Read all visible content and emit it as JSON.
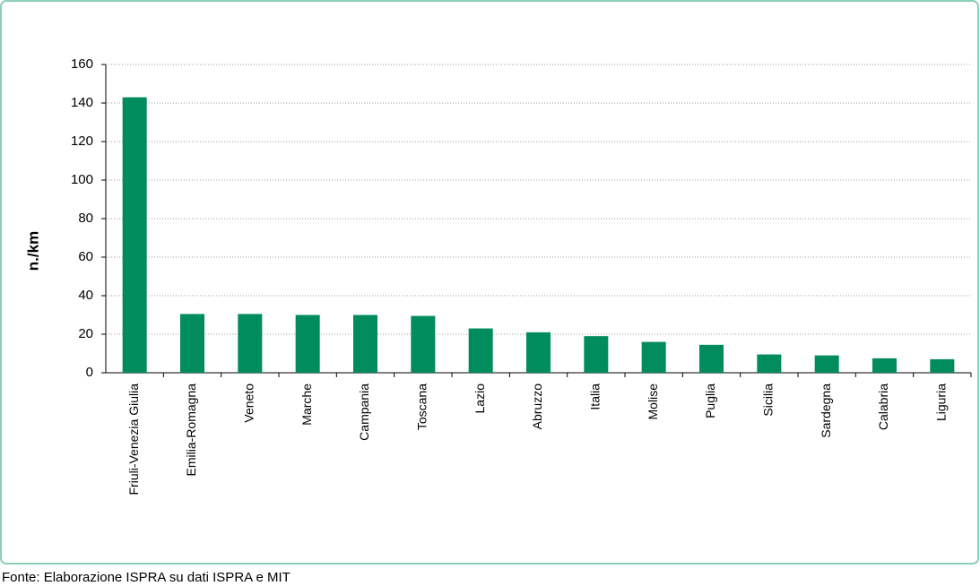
{
  "chart_data": {
    "type": "bar",
    "y_label": "n./km",
    "source": "Fonte: Elaborazione ISPRA su dati ISPRA e MIT",
    "categories": [
      "Friuli-Venezia Giulia",
      "Emilia-Romagna",
      "Veneto",
      "Marche",
      "Campania",
      "Toscana",
      "Lazio",
      "Abruzzo",
      "Italia",
      "Molise",
      "Puglia",
      "Sicilia",
      "Sardegna",
      "Calabria",
      "Liguria"
    ],
    "values": [
      143,
      30.5,
      30.5,
      30,
      30,
      29.5,
      23,
      21,
      19,
      16,
      14.5,
      9.5,
      9,
      7.5,
      7
    ],
    "color": "#008c5c",
    "ylim": [
      0,
      160
    ],
    "yticks": [
      0,
      20,
      40,
      60,
      80,
      100,
      120,
      140,
      160
    ],
    "grid": true
  }
}
